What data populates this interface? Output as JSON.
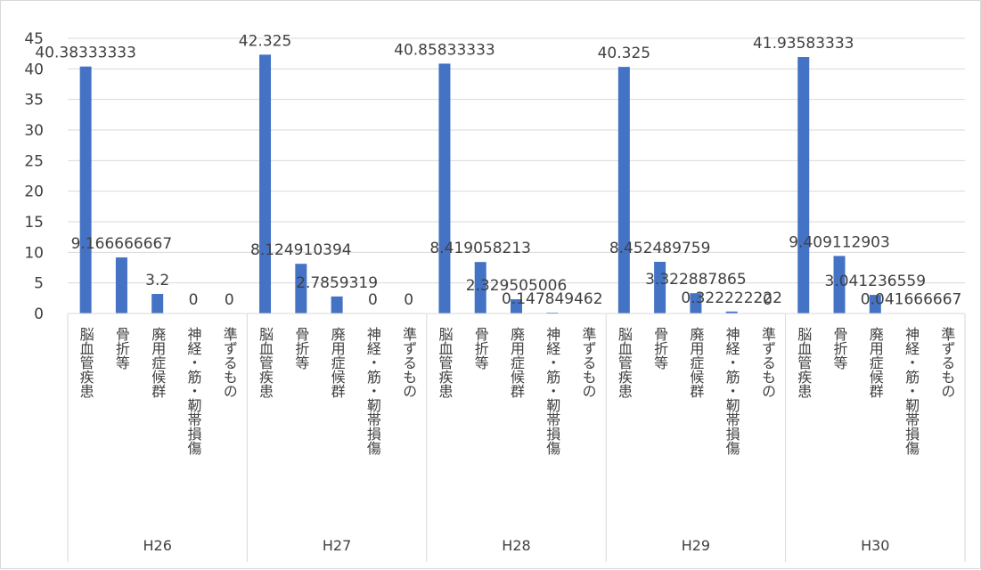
{
  "chart_data": {
    "type": "bar",
    "title": "",
    "xlabel": "",
    "ylabel": "",
    "ylim": [
      0,
      45
    ],
    "y_ticks": [
      "0",
      "5",
      "10",
      "15",
      "20",
      "25",
      "30",
      "35",
      "40",
      "45"
    ],
    "grid": true,
    "legend": "none",
    "colors": {
      "bar": "#4472C4",
      "grid": "#d9d9d9",
      "text": "#404040"
    },
    "categories": [
      "脳血管疾患",
      "骨折等",
      "廃用症候群",
      "神経・筋・靭帯損傷",
      "準ずるもの"
    ],
    "groups": [
      {
        "name": "H26",
        "values": [
          40.38333333,
          9.166666667,
          3.2,
          0,
          0
        ],
        "labels": [
          "40.38333333",
          "9.166666667",
          "3.2",
          "0",
          "0"
        ]
      },
      {
        "name": "H27",
        "values": [
          42.325,
          8.124910394,
          2.7859319,
          0,
          0
        ],
        "labels": [
          "42.325",
          "8.124910394",
          "2.7859319",
          "0",
          "0"
        ]
      },
      {
        "name": "H28",
        "values": [
          40.85833333,
          8.419058213,
          2.329505006,
          0.147849462,
          0
        ],
        "labels": [
          "40.85833333",
          "8.419058213",
          "2.329505006",
          "0.147849462",
          ""
        ]
      },
      {
        "name": "H29",
        "values": [
          40.325,
          8.452489759,
          3.322887865,
          0.322222222,
          0
        ],
        "labels": [
          "40.325",
          "8.452489759",
          "3.322887865",
          "0.322222222",
          "0"
        ]
      },
      {
        "name": "H30",
        "values": [
          41.93583333,
          9.409112903,
          3.041236559,
          0.041666667,
          0
        ],
        "labels": [
          "41.93583333",
          "9.409112903",
          "3.041236559",
          "0.041666667",
          ""
        ]
      }
    ]
  }
}
